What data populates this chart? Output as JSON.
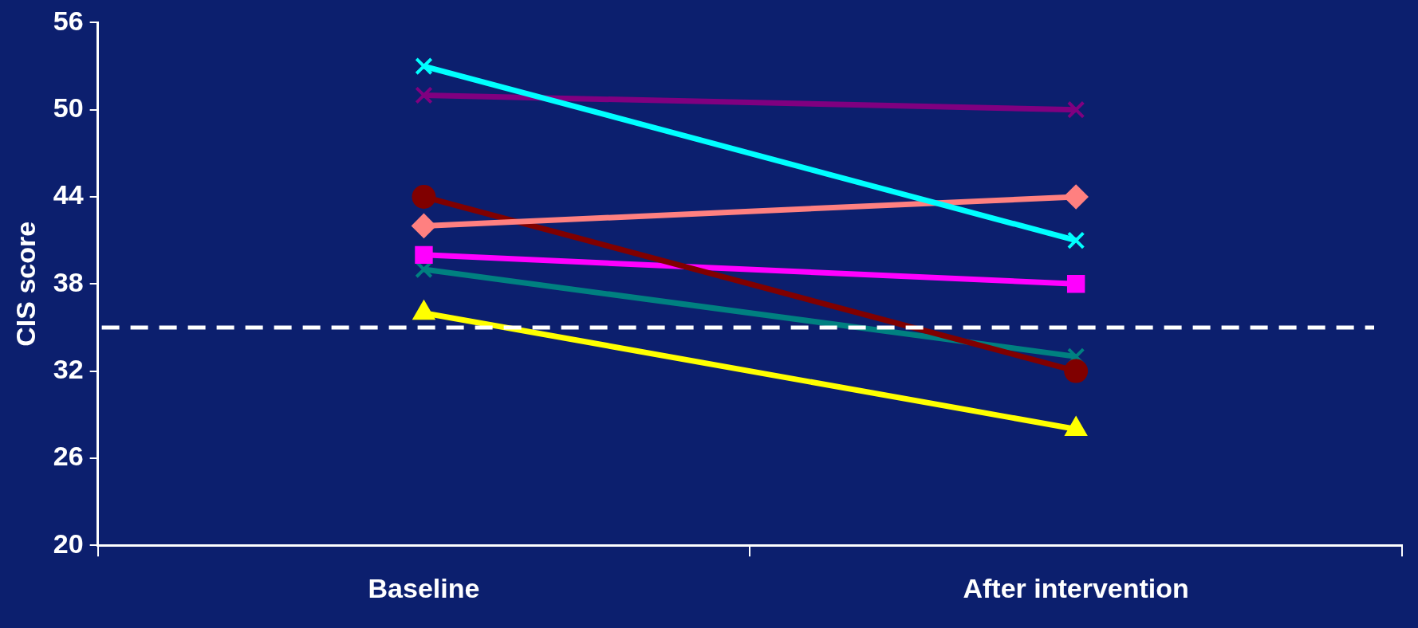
{
  "chart_data": {
    "type": "line",
    "ylabel": "CIS score",
    "categories": [
      "Baseline",
      "After intervention"
    ],
    "series": [
      {
        "color": "#00ffff",
        "marker": "cross",
        "values": [
          53,
          41
        ]
      },
      {
        "color": "#800080",
        "marker": "cross",
        "values": [
          51,
          50
        ]
      },
      {
        "color": "#ff8080",
        "marker": "diamond",
        "values": [
          42,
          44
        ]
      },
      {
        "color": "#800000",
        "marker": "circle",
        "values": [
          44,
          32
        ]
      },
      {
        "color": "#ff00ff",
        "marker": "square",
        "values": [
          40,
          38
        ]
      },
      {
        "color": "#008080",
        "marker": "cross",
        "values": [
          39,
          33
        ]
      },
      {
        "color": "#ffff00",
        "marker": "triangle",
        "values": [
          36,
          28
        ]
      }
    ],
    "ylim": [
      20,
      56
    ],
    "yticks": [
      20,
      26,
      32,
      38,
      44,
      50,
      56
    ],
    "grid": false,
    "legend": false,
    "line_style": "solid",
    "ref_lines": [
      {
        "axis": "y",
        "value": 35,
        "color": "#ffffff",
        "line_style": "dashed"
      }
    ]
  }
}
